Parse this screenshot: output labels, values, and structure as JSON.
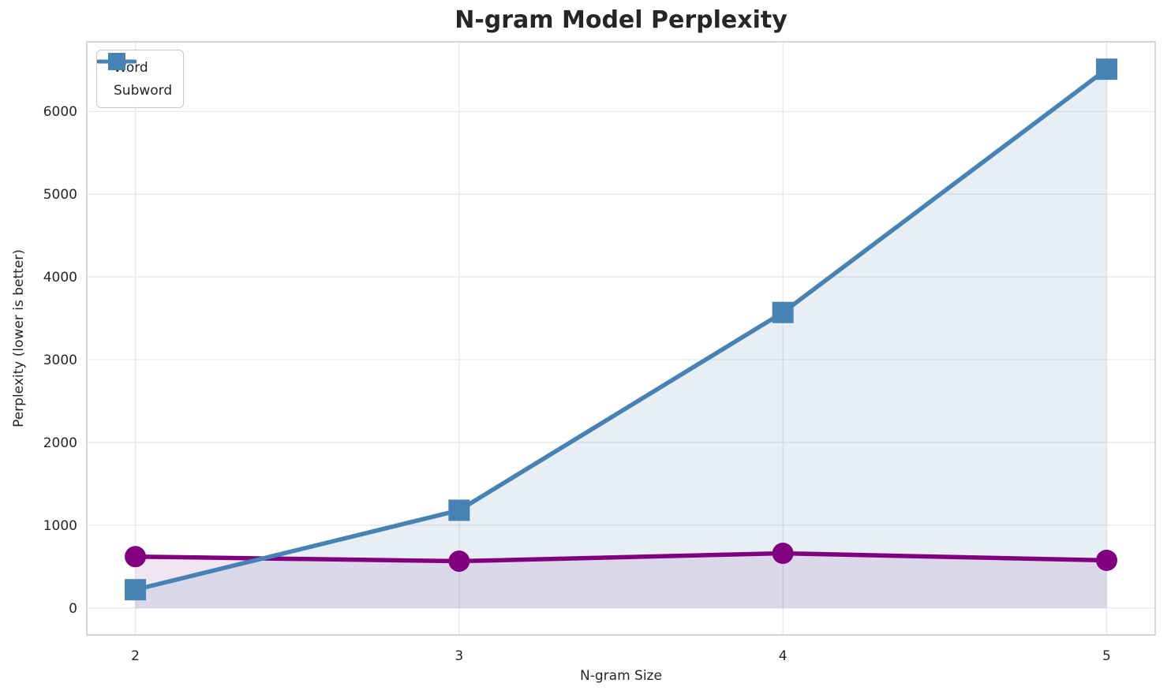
{
  "chart_data": {
    "type": "line",
    "title": "N-gram Model Perplexity",
    "xlabel": "N-gram Size",
    "ylabel": "Perplexity (lower is better)",
    "x": [
      2,
      3,
      4,
      5
    ],
    "series": [
      {
        "name": "Word",
        "marker": "circle",
        "color": "#800080",
        "fill_color": "rgba(128,0,128,0.10)",
        "values": [
          620,
          565,
          660,
          575
        ]
      },
      {
        "name": "Subword",
        "marker": "square",
        "color": "#4682B4",
        "fill_color": "rgba(70,130,180,0.13)",
        "values": [
          220,
          1180,
          3570,
          6510
        ]
      }
    ],
    "xticks": [
      2,
      3,
      4,
      5
    ],
    "yticks": [
      0,
      1000,
      2000,
      3000,
      4000,
      5000,
      6000
    ],
    "xlim": [
      1.85,
      5.15
    ],
    "ylim": [
      -326,
      6841
    ],
    "grid": true,
    "fill_to_zero": true,
    "legend_position": "upper left",
    "style": {
      "grid_color": "#e7e7e7",
      "spine_color": "#c9c9c9",
      "text_color": "#262626",
      "background": "#ffffff",
      "line_width": 5.5
    }
  }
}
